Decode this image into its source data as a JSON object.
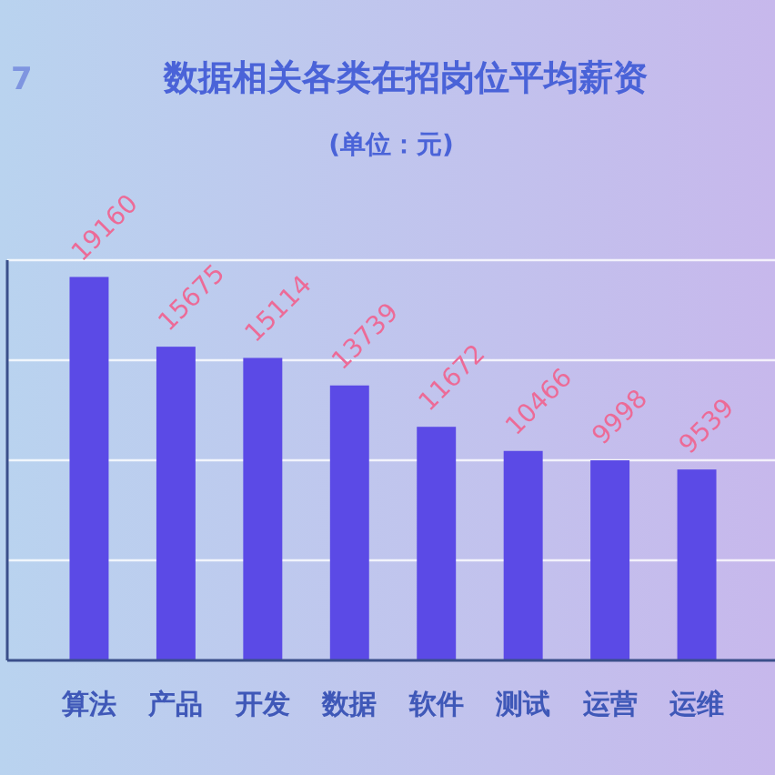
{
  "chart_data": {
    "type": "bar",
    "title": "数据相关各类在招岗位平均薪资",
    "subtitle": "(单位：元)",
    "annotations": [
      "7"
    ],
    "categories": [
      "算法",
      "产品",
      "开发",
      "数据",
      "软件",
      "测试",
      "运营",
      "运维"
    ],
    "values": [
      19160,
      15675,
      15114,
      13739,
      11672,
      10466,
      9998,
      9539
    ],
    "color": "#5b4ae6",
    "ylim": [
      0,
      20000
    ],
    "yticks": [
      {
        "value": 5000,
        "label": null
      },
      {
        "value": 10000,
        "label": null
      },
      {
        "value": 15000,
        "label": null
      },
      {
        "value": 20000,
        "label": null
      }
    ],
    "grid": "y",
    "tick_labels": "x",
    "data_labels": true
  }
}
